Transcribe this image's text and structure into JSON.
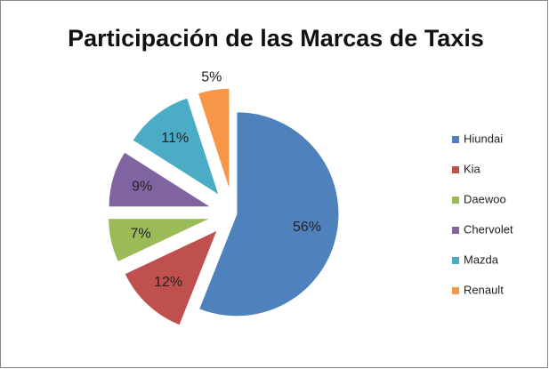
{
  "chart_data": {
    "type": "pie",
    "title": "Participación de las Marcas de Taxis",
    "categories": [
      "Hiundai",
      "Kia",
      "Daewoo",
      "Chervolet",
      "Mazda",
      "Renault"
    ],
    "values": [
      56,
      12,
      7,
      9,
      11,
      5
    ],
    "value_labels": [
      "56%",
      "12%",
      "7%",
      "9%",
      "11%",
      "5%"
    ],
    "colors": [
      "#4f81bd",
      "#c0504d",
      "#9bbb59",
      "#8064a2",
      "#4bacc6",
      "#f79646"
    ],
    "legend": "right"
  }
}
